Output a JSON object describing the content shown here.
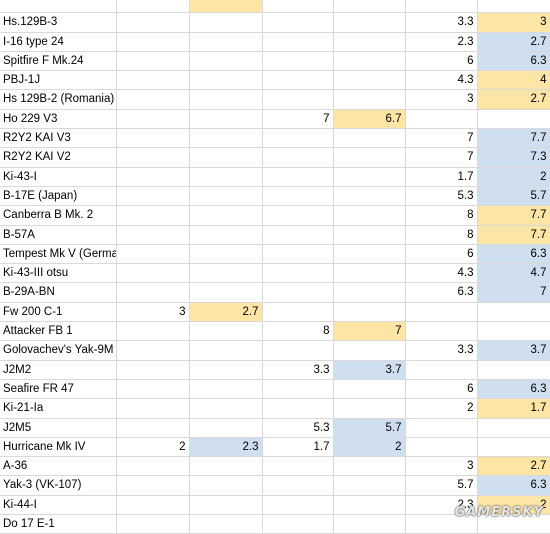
{
  "colors": {
    "increase": "#fde5a6",
    "decrease": "#cfdff0",
    "grid": "#d9d9d9"
  },
  "rows": [
    {
      "name": "",
      "c1": "",
      "c2": "",
      "c3": "",
      "c4": "",
      "c5": "",
      "c6": "",
      "o1": "o"
    },
    {
      "name": "Hs.129B-3",
      "c1": "",
      "c2": "",
      "c3": "",
      "c4": "",
      "c5": "3.3",
      "c6": "3",
      "h": "o"
    },
    {
      "name": "I-16 type 24",
      "c1": "",
      "c2": "",
      "c3": "",
      "c4": "",
      "c5": "2.3",
      "c6": "2.7",
      "h": "b"
    },
    {
      "name": "Spitfire F Mk.24",
      "c1": "",
      "c2": "",
      "c3": "",
      "c4": "",
      "c5": "6",
      "c6": "6.3",
      "h": "b"
    },
    {
      "name": "PBJ-1J",
      "c1": "",
      "c2": "",
      "c3": "",
      "c4": "",
      "c5": "4.3",
      "c6": "4",
      "h": "o"
    },
    {
      "name": "Hs 129B-2 (Romania)",
      "c1": "",
      "c2": "",
      "c3": "",
      "c4": "",
      "c5": "3",
      "c6": "2.7",
      "h": "o"
    },
    {
      "name": "Ho 229 V3",
      "c1": "",
      "c2": "",
      "c3": "7",
      "c4": "6.7",
      "c5": "",
      "c6": "",
      "hm": "o"
    },
    {
      "name": "R2Y2 KAI V3",
      "c1": "",
      "c2": "",
      "c3": "",
      "c4": "",
      "c5": "7",
      "c6": "7.7",
      "h": "b"
    },
    {
      "name": "R2Y2 KAI V2",
      "c1": "",
      "c2": "",
      "c3": "",
      "c4": "",
      "c5": "7",
      "c6": "7.3",
      "h": "b"
    },
    {
      "name": "Ki-43-I",
      "c1": "",
      "c2": "",
      "c3": "",
      "c4": "",
      "c5": "1.7",
      "c6": "2",
      "h": "b"
    },
    {
      "name": "B-17E (Japan)",
      "c1": "",
      "c2": "",
      "c3": "",
      "c4": "",
      "c5": "5.3",
      "c6": "5.7",
      "h": "b"
    },
    {
      "name": "Canberra B Mk. 2",
      "c1": "",
      "c2": "",
      "c3": "",
      "c4": "",
      "c5": "8",
      "c6": "7.7",
      "h": "o"
    },
    {
      "name": "B-57A",
      "c1": "",
      "c2": "",
      "c3": "",
      "c4": "",
      "c5": "8",
      "c6": "7.7",
      "h": "o"
    },
    {
      "name": "Tempest Mk V (Germany)",
      "c1": "",
      "c2": "",
      "c3": "",
      "c4": "",
      "c5": "6",
      "c6": "6.3",
      "h": "b"
    },
    {
      "name": "Ki-43-III otsu",
      "c1": "",
      "c2": "",
      "c3": "",
      "c4": "",
      "c5": "4.3",
      "c6": "4.7",
      "h": "b"
    },
    {
      "name": "B-29A-BN",
      "c1": "",
      "c2": "",
      "c3": "",
      "c4": "",
      "c5": "6.3",
      "c6": "7",
      "h": "b"
    },
    {
      "name": "Fw 200 C-1",
      "c1": "3",
      "c2": "2.7",
      "c3": "",
      "c4": "",
      "c5": "",
      "c6": "",
      "hl": "o"
    },
    {
      "name": "Attacker FB 1",
      "c1": "",
      "c2": "",
      "c3": "8",
      "c4": "7",
      "c5": "",
      "c6": "",
      "hm": "o"
    },
    {
      "name": "Golovachev's Yak-9M",
      "c1": "",
      "c2": "",
      "c3": "",
      "c4": "",
      "c5": "3.3",
      "c6": "3.7",
      "h": "b"
    },
    {
      "name": "J2M2",
      "c1": "",
      "c2": "",
      "c3": "3.3",
      "c4": "3.7",
      "c5": "",
      "c6": "",
      "hm": "b"
    },
    {
      "name": "Seafire FR 47",
      "c1": "",
      "c2": "",
      "c3": "",
      "c4": "",
      "c5": "6",
      "c6": "6.3",
      "h": "b"
    },
    {
      "name": "Ki-21-Ia",
      "c1": "",
      "c2": "",
      "c3": "",
      "c4": "",
      "c5": "2",
      "c6": "1.7",
      "h": "o"
    },
    {
      "name": "J2M5",
      "c1": "",
      "c2": "",
      "c3": "5.3",
      "c4": "5.7",
      "c5": "",
      "c6": "",
      "hm": "b"
    },
    {
      "name": "Hurricane Mk IV",
      "c1": "2",
      "c2": "2.3",
      "c3": "1.7",
      "c4": "2",
      "c5": "",
      "c6": "",
      "hl": "b",
      "hm": "b"
    },
    {
      "name": "A-36",
      "c1": "",
      "c2": "",
      "c3": "",
      "c4": "",
      "c5": "3",
      "c6": "2.7",
      "h": "o"
    },
    {
      "name": "Yak-3 (VK-107)",
      "c1": "",
      "c2": "",
      "c3": "",
      "c4": "",
      "c5": "5.7",
      "c6": "6.3",
      "h": "b"
    },
    {
      "name": "Ki-44-I",
      "c1": "",
      "c2": "",
      "c3": "",
      "c4": "",
      "c5": "2.3",
      "c6": "2",
      "h": "o"
    },
    {
      "name": "Do 17 E-1",
      "c1": "",
      "c2": "",
      "c3": "",
      "c4": "",
      "c5": "",
      "c6": "",
      "h": ""
    }
  ],
  "watermark": "GAMERSKY"
}
